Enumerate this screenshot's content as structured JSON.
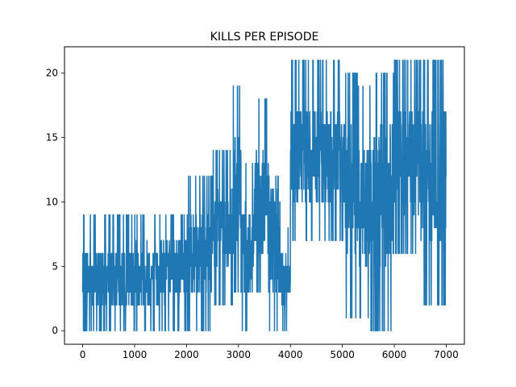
{
  "chart_data": {
    "type": "line",
    "title": "KILLS PER EPISODE",
    "xlabel": "",
    "ylabel": "",
    "xlim": [
      -350,
      7350
    ],
    "ylim": [
      -1.05,
      22.05
    ],
    "xticks": [
      0,
      1000,
      2000,
      3000,
      4000,
      5000,
      6000,
      7000
    ],
    "xtick_labels": [
      "0",
      "1000",
      "2000",
      "3000",
      "4000",
      "5000",
      "6000",
      "7000"
    ],
    "yticks": [
      0,
      5,
      10,
      15,
      20
    ],
    "ytick_labels": [
      "0",
      "5",
      "10",
      "15",
      "20"
    ],
    "grid": false,
    "series": [
      {
        "color": "#1f77b4",
        "segments": [
          {
            "x": [
              0,
              1000
            ],
            "low": 0,
            "high": 9,
            "mean": 3.5
          },
          {
            "x": [
              1000,
              1500
            ],
            "low": 0,
            "high": 9,
            "mean": 4
          },
          {
            "x": [
              1500,
              2000
            ],
            "low": 0,
            "high": 9,
            "mean": 5
          },
          {
            "x": [
              2000,
              2500
            ],
            "low": 0,
            "high": 12,
            "mean": 6
          },
          {
            "x": [
              2500,
              2900
            ],
            "low": 2,
            "high": 14,
            "mean": 8
          },
          {
            "x": [
              2900,
              3050
            ],
            "low": 3,
            "high": 19,
            "mean": 10
          },
          {
            "x": [
              3050,
              3300
            ],
            "low": 0,
            "high": 13,
            "mean": 6
          },
          {
            "x": [
              3300,
              3600
            ],
            "low": 3,
            "high": 18,
            "mean": 9
          },
          {
            "x": [
              3600,
              3800
            ],
            "low": 0,
            "high": 17,
            "mean": 7
          },
          {
            "x": [
              3800,
              4000
            ],
            "low": 0,
            "high": 8,
            "mean": 4
          },
          {
            "x": [
              4000,
              5050
            ],
            "low": 7,
            "high": 21,
            "mean": 13
          },
          {
            "x": [
              5050,
              5300
            ],
            "low": 1,
            "high": 20,
            "mean": 11
          },
          {
            "x": [
              5300,
              5550
            ],
            "low": 1,
            "high": 19,
            "mean": 9
          },
          {
            "x": [
              5550,
              6000
            ],
            "low": 0,
            "high": 20,
            "mean": 11
          },
          {
            "x": [
              6000,
              6500
            ],
            "low": 6,
            "high": 21,
            "mean": 13
          },
          {
            "x": [
              6500,
              7000
            ],
            "low": 2,
            "high": 21,
            "mean": 13
          }
        ]
      }
    ]
  }
}
